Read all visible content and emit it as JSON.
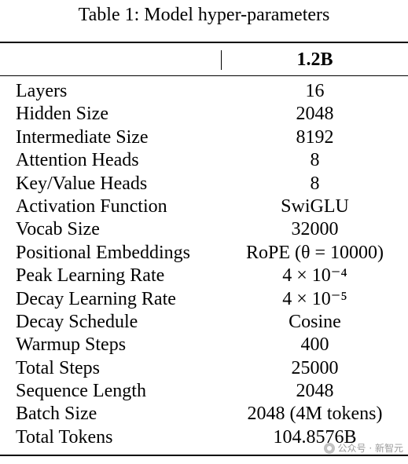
{
  "caption": "Table 1: Model hyper-parameters",
  "table": {
    "column_header": "1.2B",
    "rows": [
      {
        "label": "Layers",
        "value": "16"
      },
      {
        "label": "Hidden Size",
        "value": "2048"
      },
      {
        "label": "Intermediate Size",
        "value": "8192"
      },
      {
        "label": "Attention Heads",
        "value": "8"
      },
      {
        "label": "Key/Value Heads",
        "value": "8"
      },
      {
        "label": "Activation Function",
        "value": "SwiGLU"
      },
      {
        "label": "Vocab Size",
        "value": "32000"
      },
      {
        "label": "Positional Embeddings",
        "value": "RoPE (θ = 10000)"
      },
      {
        "label": "Peak Learning Rate",
        "value": "4 × 10⁻⁴"
      },
      {
        "label": "Decay Learning Rate",
        "value": "4 × 10⁻⁵"
      },
      {
        "label": "Decay Schedule",
        "value": "Cosine"
      },
      {
        "label": "Warmup Steps",
        "value": "400"
      },
      {
        "label": "Total Steps",
        "value": "25000"
      },
      {
        "label": "Sequence Length",
        "value": "2048"
      },
      {
        "label": "Batch Size",
        "value": "2048 (4M tokens)"
      },
      {
        "label": "Total Tokens",
        "value": "104.8576B"
      }
    ]
  },
  "watermark": {
    "icon": "wechat-icon",
    "text": "公众号 · 新智元"
  }
}
